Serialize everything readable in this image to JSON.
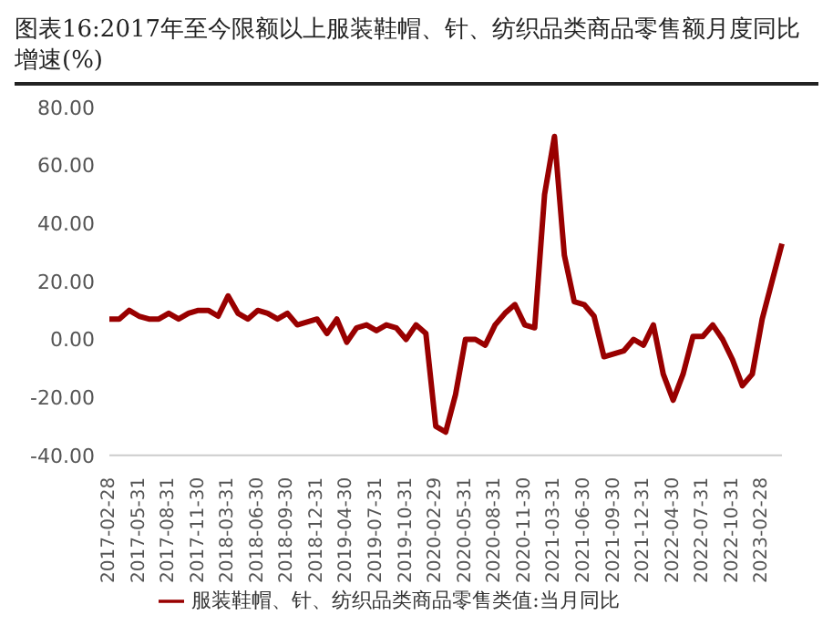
{
  "chart_data": {
    "type": "line",
    "title": "图表16:2017年至今限额以上服装鞋帽、针、纺织品类商品零售额月度同比增速(%)",
    "categories": [
      "2017-02-28",
      null,
      null,
      "2017-05-31",
      null,
      null,
      "2017-08-31",
      null,
      null,
      "2017-11-30",
      null,
      null,
      "2018-03-31",
      null,
      null,
      "2018-06-30",
      null,
      null,
      "2018-09-30",
      null,
      null,
      "2018-12-31",
      null,
      null,
      "2019-04-30",
      null,
      null,
      "2019-07-31",
      null,
      null,
      "2019-10-31",
      null,
      null,
      "2020-02-29",
      null,
      null,
      "2020-05-31",
      null,
      null,
      "2020-08-31",
      null,
      null,
      "2020-11-30",
      null,
      null,
      "2021-03-31",
      null,
      null,
      "2021-06-30",
      null,
      null,
      "2021-09-30",
      null,
      null,
      "2021-12-31",
      null,
      null,
      "2022-04-30",
      null,
      null,
      "2022-07-31",
      null,
      null,
      "2022-10-31",
      null,
      null,
      "2023-02-28",
      null,
      null
    ],
    "series": [
      {
        "name": "服装鞋帽、针、纺织品类商品零售类值:当月同比",
        "color": "#990000",
        "values": [
          7,
          7,
          10,
          8,
          7,
          7,
          9,
          7,
          9,
          10,
          10,
          8,
          15,
          9,
          7,
          10,
          9,
          7,
          9,
          5,
          6,
          7,
          2,
          7,
          -1,
          4,
          5,
          3,
          5,
          4,
          0,
          5,
          2,
          -30,
          -32,
          -19,
          0,
          0,
          -2,
          5,
          9,
          12,
          5,
          4,
          50,
          70,
          29,
          13,
          12,
          8,
          -6,
          -5,
          -4,
          0,
          -2,
          5,
          -12,
          -21,
          -12,
          1,
          1,
          5,
          0,
          -7,
          -16,
          -12,
          7,
          20,
          33
        ]
      }
    ],
    "ylim": [
      -40,
      80
    ],
    "yticks": [
      {
        "value": -40,
        "label": "-40.00"
      },
      {
        "value": -20,
        "label": "-20.00"
      },
      {
        "value": 0,
        "label": "0.00"
      },
      {
        "value": 20,
        "label": "20.00"
      },
      {
        "value": 40,
        "label": "40.00"
      },
      {
        "value": 60,
        "label": "60.00"
      },
      {
        "value": 80,
        "label": "80.00"
      }
    ],
    "legend": "bottom",
    "marker": "none",
    "line_style": "solid"
  }
}
